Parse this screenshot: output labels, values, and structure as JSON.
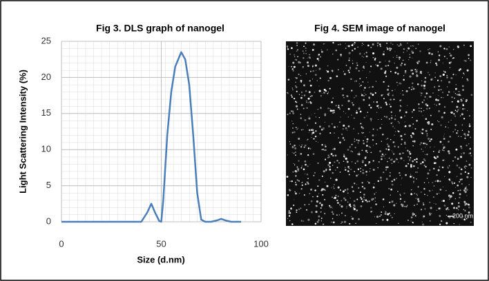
{
  "chart_data": [
    {
      "type": "line",
      "title": "Fig 3. DLS graph of nanogel",
      "x_label": "Size (d.nm)",
      "y_label": "Light Scattering Intensity (%)",
      "x": [
        0,
        10,
        20,
        30,
        38,
        40,
        43,
        45,
        47,
        49,
        50,
        51,
        53,
        55,
        57,
        60,
        62,
        64,
        66,
        68,
        70,
        72,
        75,
        78,
        80,
        82,
        85,
        90
      ],
      "series": [
        {
          "color": "#4a7ebb",
          "values": [
            0,
            0,
            0,
            0,
            0,
            0,
            1.3,
            2.5,
            1.2,
            0.1,
            0,
            3,
            12,
            18,
            21.5,
            23.5,
            22.5,
            19,
            12,
            4,
            0.3,
            0,
            0,
            0.2,
            0.4,
            0.2,
            0,
            0
          ]
        }
      ],
      "xlim": [
        0,
        100
      ],
      "xticks": [
        0,
        50,
        100
      ],
      "ylim": [
        0,
        25
      ],
      "yticks": [
        0,
        5,
        10,
        15,
        20,
        25
      ],
      "grid": true
    },
    {
      "type": "image",
      "title": "Fig 4. SEM image of nanogel",
      "scale_bar": "200 nm"
    }
  ]
}
